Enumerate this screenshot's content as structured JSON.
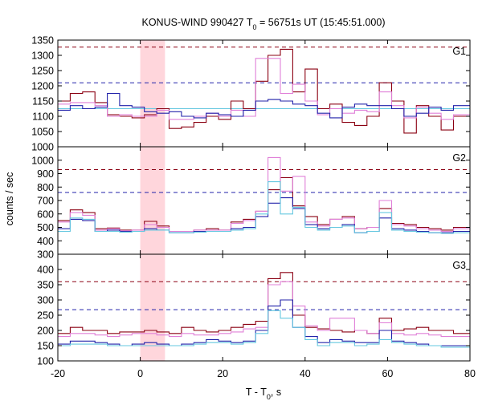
{
  "chart_data": {
    "type": "line",
    "title": {
      "prefix": "KONUS-WIND 990427 T",
      "subscript": "0",
      "suffix": " = 56751s UT (15:45:51.000)"
    },
    "xlabel": {
      "prefix": "T - T",
      "subscript": "0",
      "suffix": ", s"
    },
    "ylabel": "counts / sec",
    "xlim": [
      -20,
      80
    ],
    "xticks": [
      -20,
      0,
      20,
      40,
      60,
      80
    ],
    "shaded_interval": [
      0,
      6
    ],
    "colors": {
      "dark_red": "#8b0012",
      "blue": "#2222aa",
      "pink": "#e080d8",
      "cyan": "#66c8e0",
      "shade": "#ffd6dc"
    },
    "panels": [
      {
        "label": "G1",
        "ylim": [
          1000,
          1350
        ],
        "yticks": [
          1000,
          1050,
          1100,
          1150,
          1200,
          1250,
          1300,
          1350
        ],
        "hlines": [
          {
            "name": "dark-red-level",
            "value": 1327,
            "color": "#8b0012"
          },
          {
            "name": "blue-level",
            "value": 1210,
            "color": "#2222aa"
          },
          {
            "name": "cyan-background",
            "value": 1125,
            "color": "#66c8e0",
            "dashed": false
          }
        ],
        "series": [
          {
            "name": "dark-red",
            "color": "#8b0012",
            "edges": [
              -20,
              -17,
              -14,
              -11,
              -8,
              -5,
              -2,
              1,
              4,
              7,
              10,
              13,
              16,
              19,
              22,
              25,
              28,
              31,
              34,
              37,
              40,
              43,
              46,
              49,
              52,
              55,
              58,
              61,
              64,
              67,
              70,
              73,
              76,
              79,
              80
            ],
            "values": [
              1150,
              1175,
              1180,
              1145,
              1105,
              1100,
              1095,
              1105,
              1125,
              1060,
              1065,
              1080,
              1100,
              1090,
              1150,
              1125,
              1215,
              1300,
              1320,
              1180,
              1255,
              1125,
              1140,
              1080,
              1070,
              1100,
              1210,
              1150,
              1045,
              1135,
              1100,
              1055,
              1100,
              1100
            ]
          },
          {
            "name": "pink",
            "color": "#e080d8",
            "edges": [
              -20,
              -17,
              -14,
              -11,
              -8,
              -5,
              -2,
              1,
              4,
              7,
              10,
              13,
              16,
              19,
              22,
              25,
              28,
              31,
              34,
              37,
              40,
              43,
              46,
              49,
              52,
              55,
              58,
              61,
              64,
              67,
              70,
              73,
              76,
              79,
              80
            ],
            "values": [
              1140,
              1145,
              1145,
              1135,
              1100,
              1105,
              1100,
              1100,
              1120,
              1090,
              1090,
              1100,
              1110,
              1100,
              1120,
              1100,
              1290,
              1290,
              1175,
              1205,
              1150,
              1105,
              1125,
              1110,
              1120,
              1115,
              1180,
              1135,
              1095,
              1130,
              1110,
              1090,
              1105,
              1105
            ]
          },
          {
            "name": "blue",
            "color": "#2222aa",
            "edges": [
              -20,
              -17,
              -14,
              -11,
              -8,
              -5,
              -2,
              1,
              4,
              7,
              10,
              13,
              16,
              19,
              22,
              25,
              28,
              31,
              34,
              37,
              40,
              43,
              46,
              49,
              52,
              55,
              58,
              61,
              64,
              67,
              70,
              73,
              76,
              79,
              80
            ],
            "values": [
              1120,
              1135,
              1125,
              1130,
              1175,
              1135,
              1130,
              1115,
              1110,
              1115,
              1100,
              1095,
              1110,
              1105,
              1100,
              1120,
              1150,
              1155,
              1150,
              1140,
              1135,
              1110,
              1095,
              1130,
              1140,
              1135,
              1135,
              1125,
              1100,
              1110,
              1130,
              1120,
              1135,
              1135
            ]
          }
        ]
      },
      {
        "label": "G2",
        "ylim": [
          300,
          1100
        ],
        "yticks": [
          300,
          400,
          500,
          600,
          700,
          800,
          900,
          1000
        ],
        "hlines": [
          {
            "name": "dark-red-level",
            "value": 930,
            "color": "#8b0012"
          },
          {
            "name": "blue-level",
            "value": 760,
            "color": "#2222aa"
          }
        ],
        "series": [
          {
            "name": "dark-red",
            "color": "#8b0012",
            "edges": [
              -20,
              -17,
              -14,
              -11,
              -8,
              -5,
              -2,
              1,
              4,
              7,
              10,
              13,
              16,
              19,
              22,
              25,
              28,
              31,
              34,
              37,
              40,
              43,
              46,
              49,
              52,
              55,
              58,
              61,
              64,
              67,
              70,
              73,
              76,
              79,
              80
            ],
            "values": [
              550,
              630,
              610,
              490,
              495,
              480,
              480,
              545,
              510,
              470,
              470,
              480,
              490,
              480,
              540,
              560,
              620,
              780,
              870,
              660,
              580,
              520,
              560,
              580,
              490,
              500,
              640,
              530,
              520,
              500,
              490,
              480,
              500,
              500
            ]
          },
          {
            "name": "pink",
            "color": "#e080d8",
            "edges": [
              -20,
              -17,
              -14,
              -11,
              -8,
              -5,
              -2,
              1,
              4,
              7,
              10,
              13,
              16,
              19,
              22,
              25,
              28,
              31,
              34,
              37,
              40,
              43,
              46,
              49,
              52,
              55,
              58,
              61,
              64,
              67,
              70,
              73,
              76,
              79,
              80
            ],
            "values": [
              540,
              610,
              590,
              480,
              490,
              475,
              480,
              520,
              500,
              470,
              470,
              480,
              480,
              480,
              530,
              550,
              620,
              1020,
              770,
              880,
              540,
              510,
              560,
              570,
              490,
              500,
              700,
              520,
              510,
              490,
              480,
              470,
              490,
              490
            ]
          },
          {
            "name": "blue",
            "color": "#2222aa",
            "edges": [
              -20,
              -17,
              -14,
              -11,
              -8,
              -5,
              -2,
              1,
              4,
              7,
              10,
              13,
              16,
              19,
              22,
              25,
              28,
              31,
              34,
              37,
              40,
              43,
              46,
              49,
              52,
              55,
              58,
              61,
              64,
              67,
              70,
              73,
              76,
              79,
              80
            ],
            "values": [
              490,
              560,
              550,
              470,
              480,
              470,
              470,
              490,
              480,
              460,
              460,
              470,
              470,
              470,
              490,
              500,
              580,
              680,
              720,
              640,
              520,
              490,
              500,
              520,
              460,
              470,
              570,
              490,
              480,
              470,
              460,
              460,
              470,
              470
            ]
          },
          {
            "name": "cyan",
            "color": "#66c8e0",
            "edges": [
              -20,
              -17,
              -14,
              -11,
              -8,
              -5,
              -2,
              1,
              4,
              7,
              10,
              13,
              16,
              19,
              22,
              25,
              28,
              31,
              34,
              37,
              40,
              43,
              46,
              49,
              52,
              55,
              58,
              61,
              64,
              67,
              70,
              73,
              76,
              79,
              80
            ],
            "values": [
              470,
              570,
              560,
              470,
              470,
              465,
              470,
              480,
              480,
              460,
              460,
              465,
              470,
              470,
              480,
              490,
              600,
              840,
              600,
              650,
              500,
              480,
              500,
              510,
              460,
              470,
              610,
              480,
              470,
              465,
              460,
              455,
              460,
              460
            ]
          }
        ]
      },
      {
        "label": "G3",
        "ylim": [
          100,
          450
        ],
        "yticks": [
          100,
          150,
          200,
          250,
          300,
          350,
          400
        ],
        "hlines": [
          {
            "name": "dark-red-level",
            "value": 360,
            "color": "#8b0012"
          },
          {
            "name": "blue-level",
            "value": 268,
            "color": "#2222aa"
          }
        ],
        "series": [
          {
            "name": "dark-red",
            "color": "#8b0012",
            "edges": [
              -20,
              -17,
              -14,
              -11,
              -8,
              -5,
              -2,
              1,
              4,
              7,
              10,
              13,
              16,
              19,
              22,
              25,
              28,
              31,
              34,
              37,
              40,
              43,
              46,
              49,
              52,
              55,
              58,
              61,
              64,
              67,
              70,
              73,
              76,
              79,
              80
            ],
            "values": [
              190,
              210,
              200,
              200,
              190,
              195,
              195,
              200,
              195,
              190,
              210,
              200,
              195,
              200,
              210,
              220,
              230,
              370,
              390,
              250,
              210,
              205,
              200,
              195,
              200,
              190,
              240,
              200,
              205,
              210,
              200,
              200,
              190,
              190
            ]
          },
          {
            "name": "pink",
            "color": "#e080d8",
            "edges": [
              -20,
              -17,
              -14,
              -11,
              -8,
              -5,
              -2,
              1,
              4,
              7,
              10,
              13,
              16,
              19,
              22,
              25,
              28,
              31,
              34,
              37,
              40,
              43,
              46,
              49,
              52,
              55,
              58,
              61,
              64,
              67,
              70,
              73,
              76,
              79,
              80
            ],
            "values": [
              180,
              190,
              190,
              185,
              180,
              185,
              190,
              190,
              185,
              180,
              190,
              185,
              185,
              190,
              195,
              205,
              210,
              350,
              360,
              280,
              215,
              200,
              240,
              240,
              200,
              190,
              225,
              190,
              185,
              190,
              185,
              180,
              180,
              180
            ]
          },
          {
            "name": "blue",
            "color": "#2222aa",
            "edges": [
              -20,
              -17,
              -14,
              -11,
              -8,
              -5,
              -2,
              1,
              4,
              7,
              10,
              13,
              16,
              19,
              22,
              25,
              28,
              31,
              34,
              37,
              40,
              43,
              46,
              49,
              52,
              55,
              58,
              61,
              64,
              67,
              70,
              73,
              76,
              79,
              80
            ],
            "values": [
              155,
              165,
              165,
              160,
              155,
              150,
              155,
              160,
              155,
              150,
              155,
              160,
              170,
              165,
              160,
              165,
              200,
              280,
              300,
              210,
              180,
              160,
              170,
              165,
              160,
              160,
              200,
              165,
              160,
              155,
              150,
              150,
              150,
              150
            ]
          },
          {
            "name": "cyan",
            "color": "#66c8e0",
            "edges": [
              -20,
              -17,
              -14,
              -11,
              -8,
              -5,
              -2,
              1,
              4,
              7,
              10,
              13,
              16,
              19,
              22,
              25,
              28,
              31,
              34,
              37,
              40,
              43,
              46,
              49,
              52,
              55,
              58,
              61,
              64,
              67,
              70,
              73,
              76,
              79,
              80
            ],
            "values": [
              150,
              155,
              155,
              155,
              150,
              150,
              150,
              150,
              150,
              150,
              150,
              155,
              160,
              160,
              155,
              160,
              190,
              265,
              240,
              210,
              170,
              150,
              160,
              160,
              150,
              155,
              170,
              160,
              155,
              150,
              150,
              145,
              145,
              145
            ]
          }
        ]
      }
    ]
  }
}
